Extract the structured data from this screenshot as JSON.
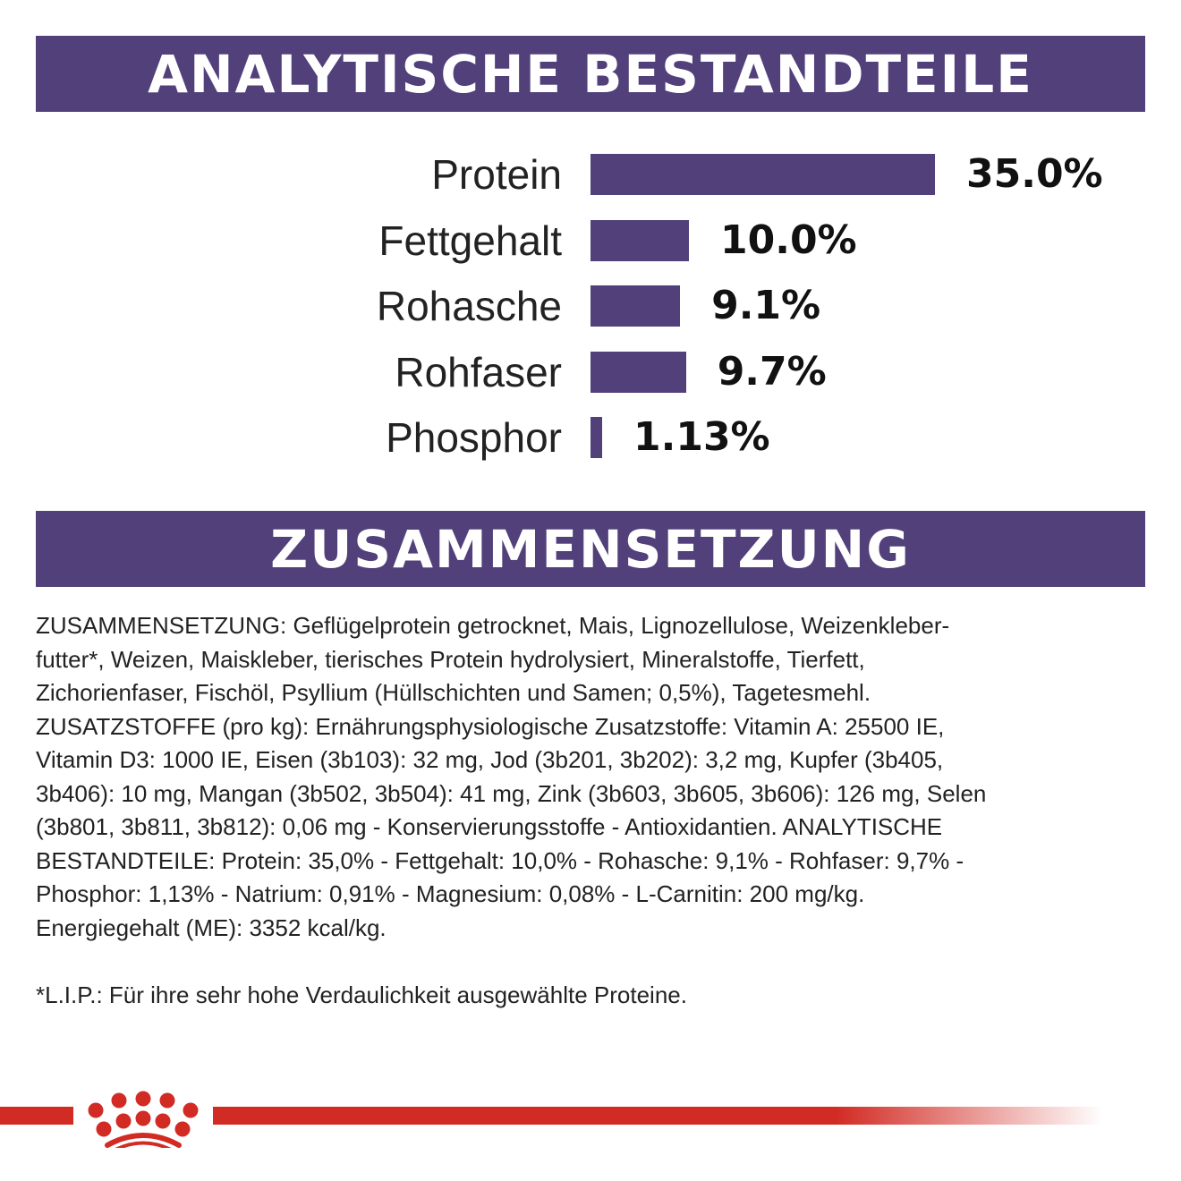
{
  "headers": {
    "analysis": "ANALYTISCHE BESTANDTEILE",
    "composition": "ZUSAMMENSETZUNG"
  },
  "colors": {
    "brand_purple": "#52407a",
    "brand_red": "#d22b24"
  },
  "chart_data": {
    "type": "bar",
    "orientation": "horizontal",
    "categories": [
      "Protein",
      "Fettgehalt",
      "Rohasche",
      "Rohfaser",
      "Phosphor"
    ],
    "values": [
      35.0,
      10.0,
      9.1,
      9.7,
      1.13
    ],
    "value_labels": [
      "35.0%",
      "10.0%",
      "9.1%",
      "9.7%",
      "1.13%"
    ],
    "unit": "%",
    "grid": false
  },
  "composition_lines": [
    "ZUSAMMENSETZUNG: Geflügelprotein getrocknet, Mais, Lignozellulose, Weizenkleber-",
    "futter*, Weizen, Maiskleber, tierisches Protein hydrolysiert, Mineralstoffe, Tierfett,",
    "Zichorienfaser, Fischöl, Psyllium (Hüllschichten und Samen; 0,5%), Tagetesmehl.",
    "ZUSATZSTOFFE (pro kg): Ernährungsphysiologische Zusatzstoffe: Vitamin A: 25500 IE,",
    "Vitamin D3: 1000 IE, Eisen (3b103): 32 mg, Jod (3b201, 3b202): 3,2 mg, Kupfer (3b405,",
    "3b406): 10 mg, Mangan (3b502, 3b504): 41 mg, Zink (3b603, 3b605, 3b606): 126 mg, Selen",
    "(3b801, 3b811, 3b812): 0,06 mg - Konservierungsstoffe - Antioxidantien. ANALYTISCHE",
    "BESTANDTEILE: Protein: 35,0% - Fettgehalt: 10,0% - Rohasche: 9,1% - Rohfaser: 9,7% -",
    "Phosphor: 1,13% - Natrium: 0,91% - Magnesium: 0,08% - L-Carnitin: 200 mg/kg.",
    "Energiegehalt (ME): 3352 kcal/kg."
  ],
  "footnote": "*L.I.P.: Für ihre sehr hohe Verdaulichkeit ausgewählte Proteine.",
  "logo": {
    "icon": "royal-canin-crown-icon"
  }
}
